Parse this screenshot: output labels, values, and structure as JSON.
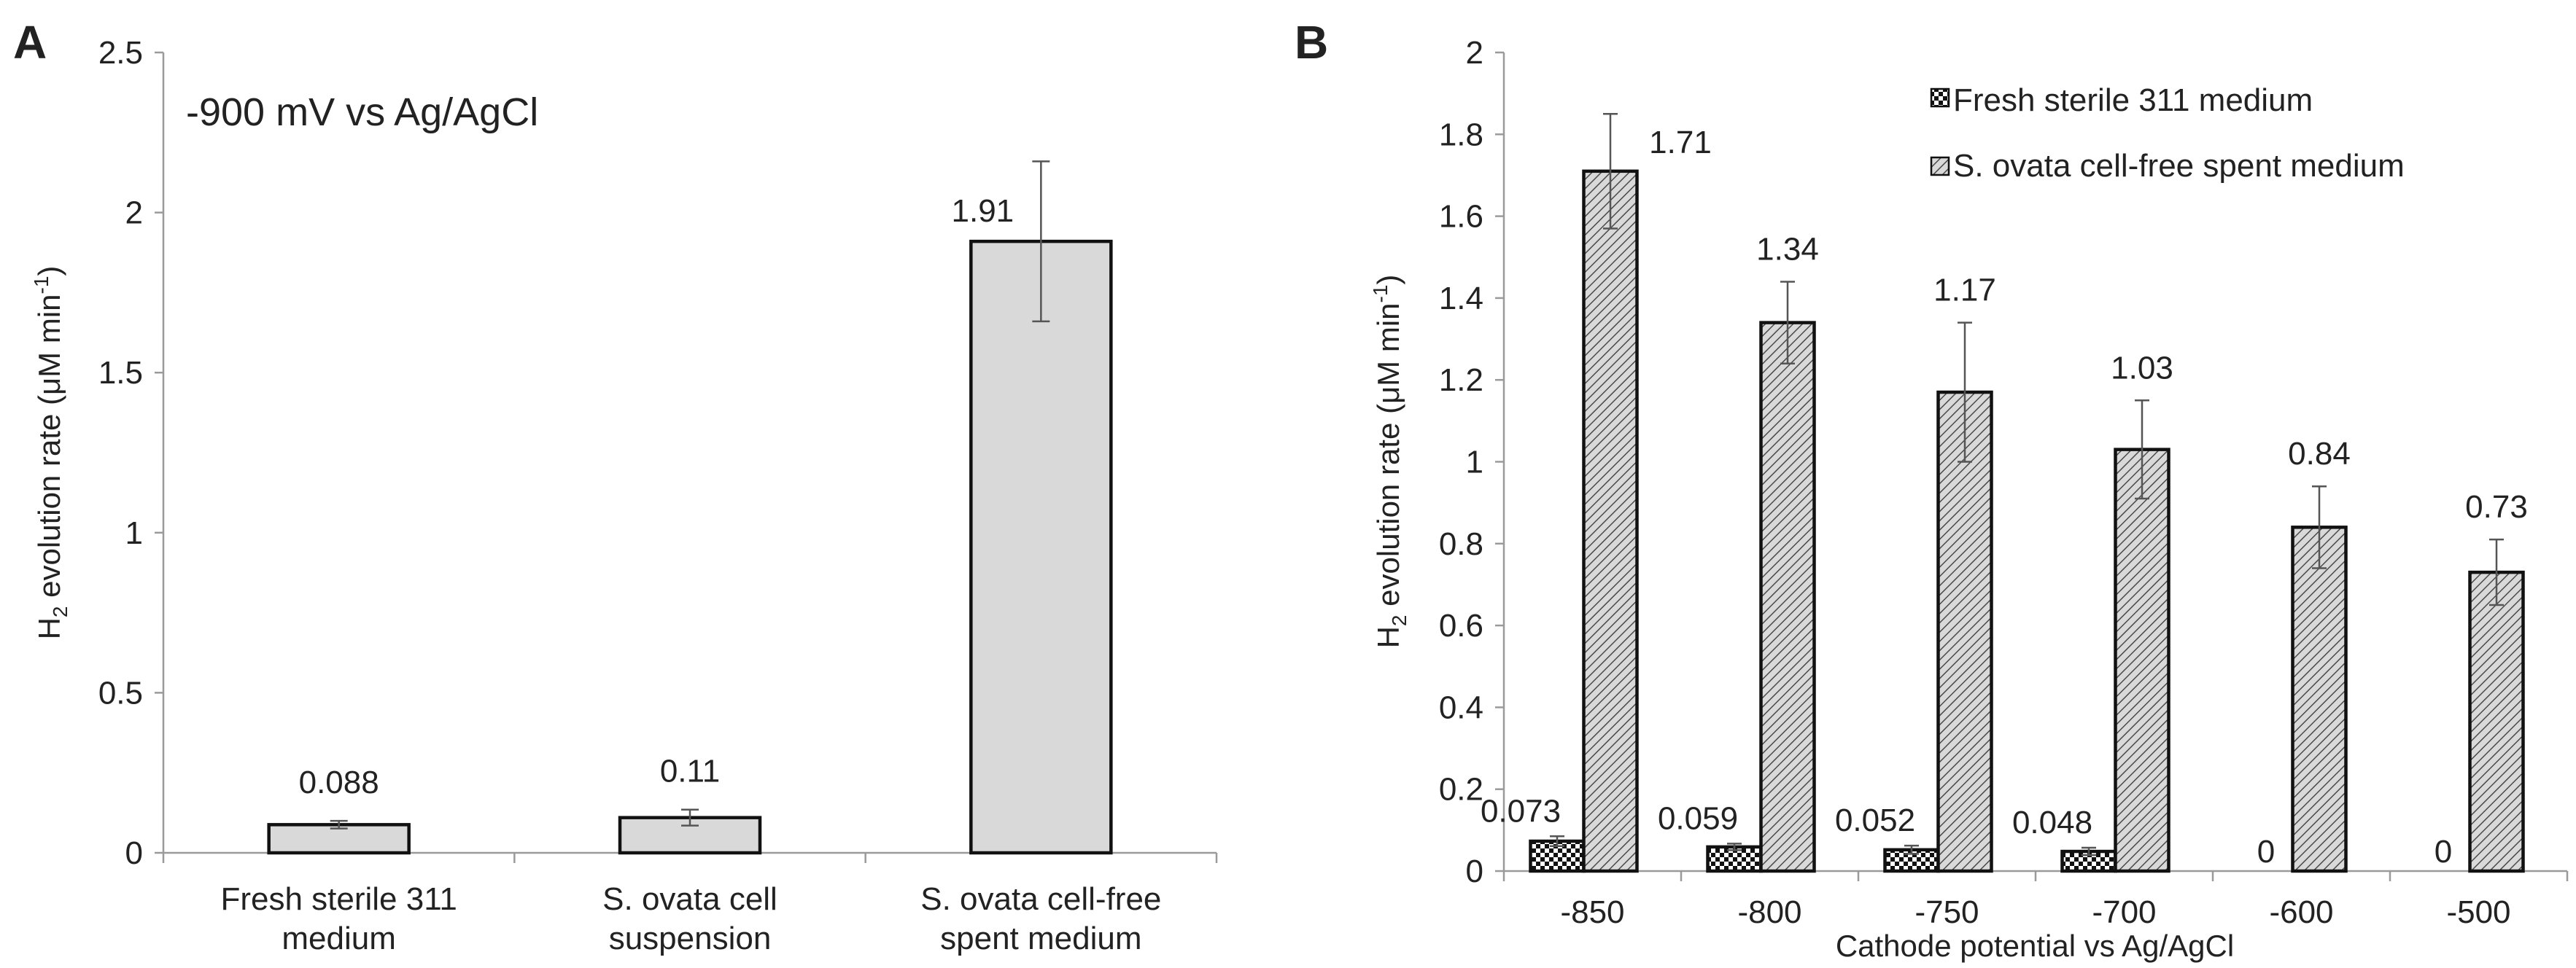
{
  "figure": {
    "colors": {
      "bar_fill": "#d9d9d9",
      "bar_stroke": "#111111",
      "axis": "#9a9a9a",
      "text": "#222222"
    }
  },
  "chart_data": [
    {
      "panel": "A",
      "type": "bar",
      "annotation": "-900 mV vs Ag/AgCl",
      "ylabel": {
        "main": "H",
        "sub": "2",
        "rest": " evolution rate (μM min",
        "sup": "-1",
        "end": ")"
      },
      "ylim": [
        0,
        2.5
      ],
      "yticks": [
        "0",
        "0.5",
        "1",
        "1.5",
        "2",
        "2.5"
      ],
      "ytick_values": [
        0,
        0.5,
        1,
        1.5,
        2,
        2.5
      ],
      "categories": [
        [
          "Fresh sterile 311",
          "medium"
        ],
        [
          "S. ovata cell",
          "suspension"
        ],
        [
          "S. ovata cell-free",
          "spent medium"
        ]
      ],
      "series": [
        {
          "name": "H2 evolution rate",
          "values": [
            0.088,
            0.11,
            1.91
          ],
          "labels": [
            "0.088",
            "0.11",
            "1.91"
          ],
          "errors": [
            0.012,
            0.025,
            0.25
          ]
        }
      ]
    },
    {
      "panel": "B",
      "type": "bar",
      "xlabel": "Cathode potential vs Ag/AgCl",
      "ylabel": {
        "main": "H",
        "sub": "2",
        "rest": " evolution rate (μM min",
        "sup": "-1",
        "end": ")"
      },
      "ylim": [
        0,
        2
      ],
      "yticks": [
        "0",
        "0.2",
        "0.4",
        "0.6",
        "0.8",
        "1",
        "1.2",
        "1.4",
        "1.6",
        "1.8",
        "2"
      ],
      "ytick_values": [
        0,
        0.2,
        0.4,
        0.6,
        0.8,
        1,
        1.2,
        1.4,
        1.6,
        1.8,
        2
      ],
      "categories": [
        "-850",
        "-800",
        "-750",
        "-700",
        "-600",
        "-500"
      ],
      "series": [
        {
          "name": "Fresh sterile 311 medium",
          "pattern": "checker",
          "values": [
            0.073,
            0.059,
            0.052,
            0.048,
            0,
            0
          ],
          "labels": [
            "0.073",
            "0.059",
            "0.052",
            "0.048",
            "0",
            "0"
          ],
          "errors": [
            0.012,
            0.008,
            0.01,
            0.009,
            0,
            0
          ]
        },
        {
          "name": "S. ovata cell-free spent medium",
          "pattern": "diagonal",
          "values": [
            1.71,
            1.34,
            1.17,
            1.03,
            0.84,
            0.73
          ],
          "labels": [
            "1.71",
            "1.34",
            "1.17",
            "1.03",
            "0.84",
            "0.73"
          ],
          "errors": [
            0.14,
            0.1,
            0.17,
            0.12,
            0.1,
            0.08
          ]
        }
      ],
      "legend": [
        "Fresh sterile 311 medium",
        "S. ovata cell-free spent medium"
      ]
    }
  ]
}
